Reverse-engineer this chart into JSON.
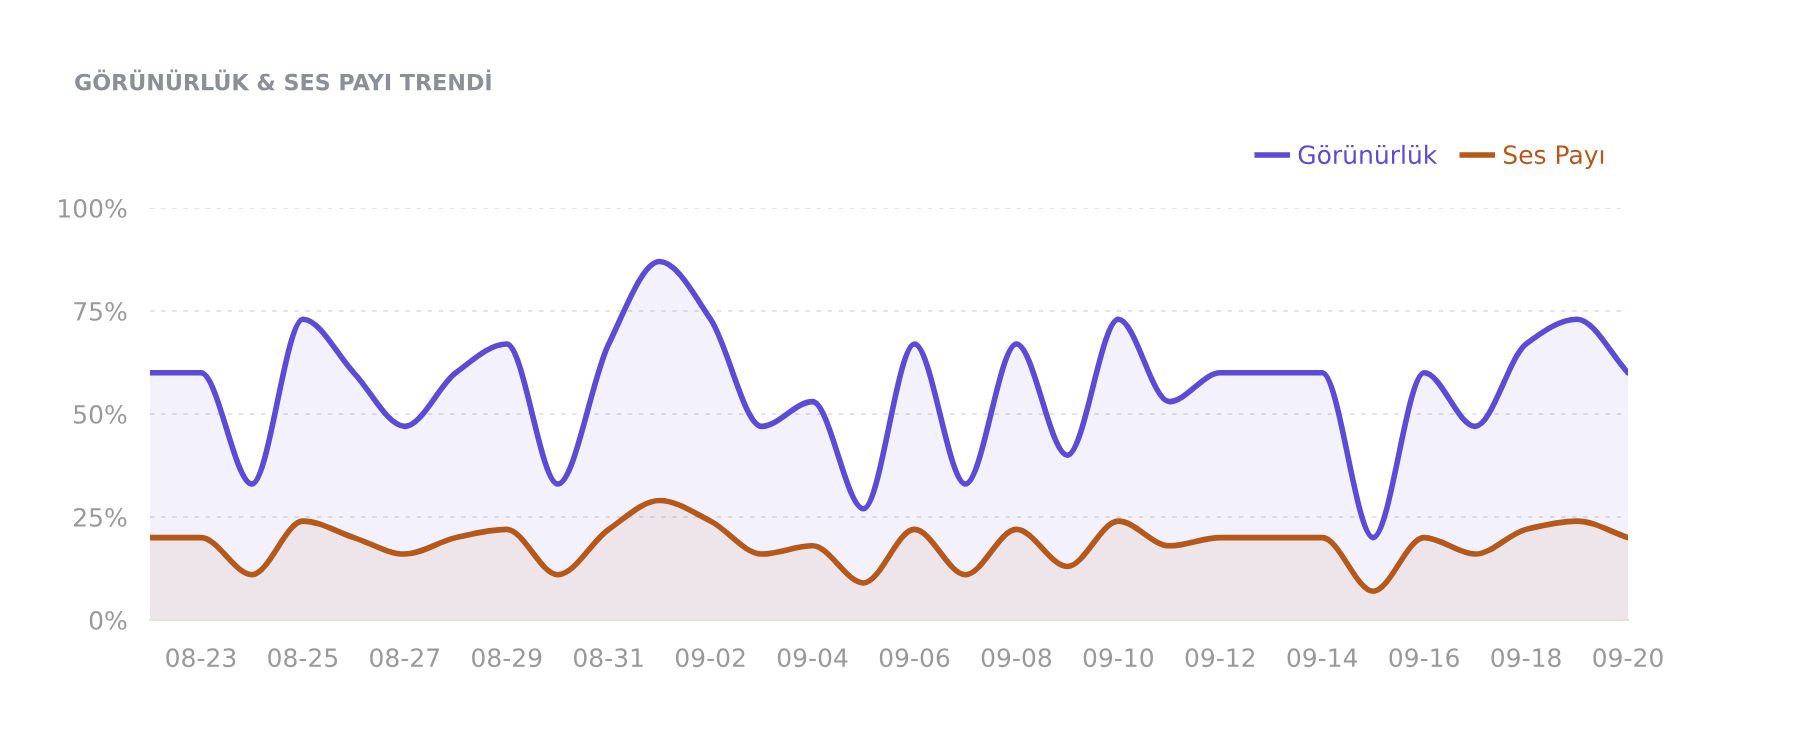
{
  "chart_data": {
    "type": "area",
    "title": "GÖRÜNÜRLÜK & SES PAYI TRENDİ",
    "categories": [
      null,
      "08-23",
      null,
      "08-25",
      null,
      "08-27",
      null,
      "08-29",
      null,
      "08-31",
      null,
      "09-02",
      null,
      "09-04",
      null,
      "09-06",
      null,
      "09-08",
      null,
      "09-10",
      null,
      "09-12",
      null,
      "09-14",
      null,
      "09-16",
      null,
      "09-18",
      null,
      "09-20"
    ],
    "series": [
      {
        "name": "Görünürlük",
        "color": "#5b4bd6",
        "values": [
          60,
          60,
          33,
          73,
          60,
          47,
          60,
          67,
          33,
          67,
          87,
          73,
          47,
          53,
          27,
          67,
          33,
          67,
          40,
          73,
          53,
          60,
          60,
          60,
          20,
          60,
          47,
          67,
          73,
          60
        ]
      },
      {
        "name": "Ses Payı",
        "color": "#b5581a",
        "values": [
          20,
          20,
          11,
          24,
          20,
          16,
          20,
          22,
          11,
          22,
          29,
          24,
          16,
          18,
          9,
          22,
          11,
          22,
          13,
          24,
          18,
          20,
          20,
          20,
          7,
          20,
          16,
          22,
          24,
          20
        ]
      }
    ],
    "ylim": [
      0,
      100
    ],
    "yticks": [
      {
        "value": 0,
        "label": "0%"
      },
      {
        "value": 25,
        "label": "25%"
      },
      {
        "value": 50,
        "label": "50%"
      },
      {
        "value": 75,
        "label": "75%"
      },
      {
        "value": 100,
        "label": "100%"
      }
    ],
    "grid": "y",
    "legend": "top right",
    "marker": "none",
    "line_style": "solid"
  }
}
